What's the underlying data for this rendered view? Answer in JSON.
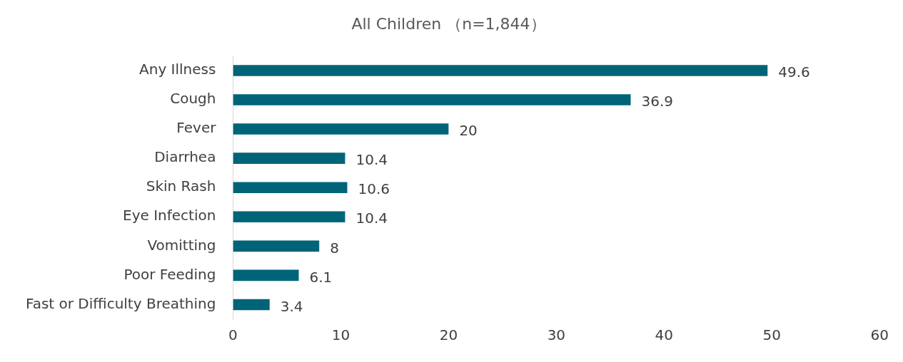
{
  "chart_data": {
    "type": "bar",
    "orientation": "horizontal",
    "title": "All Children （n=1,844）",
    "categories": [
      "Any Illness",
      "Cough",
      "Fever",
      "Diarrhea",
      "Skin Rash",
      "Eye Infection",
      "Vomitting",
      "Poor Feeding",
      "Fast or Difficulty Breathing"
    ],
    "values": [
      49.6,
      36.9,
      20,
      10.4,
      10.6,
      10.4,
      8,
      6.1,
      3.4
    ],
    "color": "#006479",
    "xlim": [
      0,
      60
    ],
    "xticks": [
      0,
      10,
      20,
      30,
      40,
      50,
      60
    ],
    "grid": false,
    "legend": false,
    "data_labels": true
  }
}
